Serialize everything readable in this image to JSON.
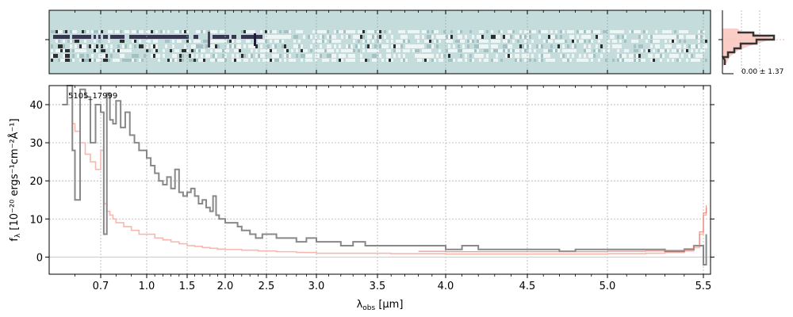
{
  "chart_data": {
    "type": "line",
    "object_id": "5105_17999",
    "xlabel_main": "λ",
    "xlabel_sub": "obs",
    "xlabel_unit": " [μm]",
    "ylabel_main": "f",
    "ylabel_sub": "λ",
    "ylabel_unit": " [10⁻²⁰ ergs⁻¹cm⁻²Å⁻¹]",
    "xtick_labels": [
      "0.7",
      "1.0",
      "1.5",
      "2.0",
      "2.5",
      "3.0",
      "3.5",
      "4.0",
      "4.5",
      "5.0",
      "5.5"
    ],
    "xtick_values": [
      0.7,
      1.0,
      1.5,
      2.0,
      2.5,
      3.0,
      3.5,
      4.0,
      4.5,
      5.0,
      5.5
    ],
    "yticks": [
      0,
      10,
      20,
      30,
      40
    ],
    "ylim": [
      -4.5,
      45
    ],
    "xlim": [
      0.5,
      5.55
    ],
    "grid": true,
    "series": [
      {
        "color": "#888888",
        "x": [
          0.55,
          0.57,
          0.59,
          0.6,
          0.62,
          0.64,
          0.66,
          0.68,
          0.7,
          0.72,
          0.74,
          0.76,
          0.78,
          0.8,
          0.83,
          0.86,
          0.89,
          0.92,
          0.95,
          1.0,
          1.05,
          1.1,
          1.15,
          1.2,
          1.25,
          1.3,
          1.35,
          1.4,
          1.45,
          1.5,
          1.55,
          1.6,
          1.65,
          1.7,
          1.75,
          1.8,
          1.84,
          1.88,
          1.92,
          1.96,
          2.0,
          2.05,
          2.1,
          2.15,
          2.2,
          2.25,
          2.3,
          2.34,
          2.37,
          2.4,
          2.45,
          2.5,
          2.6,
          2.7,
          2.8,
          2.9,
          3.0,
          3.1,
          3.2,
          3.3,
          3.4,
          3.5,
          3.6,
          3.7,
          3.8,
          3.9,
          4.0,
          4.1,
          4.2,
          4.3,
          4.4,
          4.5,
          4.6,
          4.7,
          4.8,
          4.9,
          5.0,
          5.1,
          5.2,
          5.3,
          5.4,
          5.45,
          5.48,
          5.5,
          5.52
        ],
        "y": [
          40,
          45,
          28,
          15,
          44,
          42,
          30,
          40,
          38,
          6,
          43,
          36,
          35,
          41,
          34,
          38,
          32,
          30,
          28,
          26,
          24,
          22,
          20,
          19,
          21,
          18,
          23,
          17,
          16,
          17,
          18,
          16,
          14,
          15,
          13,
          12,
          16,
          11,
          10,
          10,
          9,
          9,
          9,
          8,
          7,
          7,
          6,
          6,
          5,
          5,
          6,
          6,
          5,
          5,
          4,
          5,
          4,
          4,
          3,
          4,
          3,
          3,
          3,
          3,
          3,
          3,
          2,
          3,
          2,
          2,
          2,
          2,
          2,
          1.5,
          2,
          2,
          2,
          2,
          2,
          1.5,
          2,
          3,
          3,
          -2,
          6
        ]
      },
      {
        "color": "#f7b8b0",
        "x": [
          0.55,
          0.57,
          0.59,
          0.6,
          0.62,
          0.64,
          0.66,
          0.68,
          0.7,
          0.72,
          0.74,
          0.76,
          0.78,
          0.8,
          0.85,
          0.9,
          0.95,
          1.0,
          1.1,
          1.2,
          1.3,
          1.4,
          1.5,
          1.6,
          1.7,
          1.8,
          1.9,
          2.0,
          2.2,
          2.4,
          2.6,
          2.8,
          3.0,
          3.2,
          3.4,
          3.6,
          3.8,
          4.0,
          4.2,
          4.4,
          4.6,
          4.8,
          5.0,
          5.2,
          5.3,
          5.4,
          5.45,
          5.48,
          5.5,
          5.52
        ],
        "y": [
          40,
          45,
          35,
          33,
          30,
          27,
          25,
          23,
          28,
          14,
          12,
          11,
          10,
          9,
          8,
          7,
          6,
          6,
          5,
          4.5,
          4,
          3.5,
          3,
          2.8,
          2.5,
          2.3,
          2.1,
          2,
          1.8,
          1.6,
          1.4,
          1.2,
          1,
          1,
          1,
          0.9,
          0.9,
          0.8,
          0.8,
          0.8,
          0.8,
          0.8,
          0.9,
          1,
          1.2,
          1.6,
          2.5,
          6,
          11,
          13
        ]
      }
    ]
  },
  "side_panel": {
    "annotation": "0.00 ± 1.37"
  },
  "colors": {
    "spectrum": "#888888",
    "model": "#f7b8b0",
    "model_fit": "#e08070",
    "image_bg": "#c5dcdc",
    "dark_stripe": "#1e1a3a"
  }
}
